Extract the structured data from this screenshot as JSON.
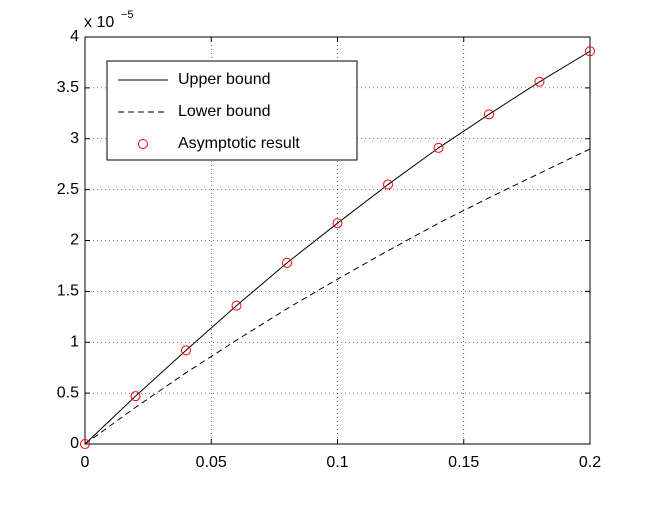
{
  "chart_data": {
    "type": "line",
    "axis_multiplier": {
      "base": "x 10",
      "exponent": "−5"
    },
    "x": [
      0,
      0.02,
      0.04,
      0.06,
      0.08,
      0.1,
      0.12,
      0.14,
      0.16,
      0.18,
      0.2
    ],
    "series": [
      {
        "name": "Upper bound",
        "color": "#000000",
        "line": "solid",
        "marker": "none",
        "values": [
          0,
          0.47,
          0.92,
          1.36,
          1.78,
          2.17,
          2.55,
          2.91,
          3.24,
          3.56,
          3.86
        ]
      },
      {
        "name": "Lower bound",
        "color": "#000000",
        "line": "dashed",
        "marker": "none",
        "values": [
          0,
          0.36,
          0.7,
          1.02,
          1.33,
          1.62,
          1.9,
          2.17,
          2.42,
          2.66,
          2.9
        ]
      },
      {
        "name": "Asymptotic result",
        "color": "#ff0000",
        "line": "none",
        "marker": "circle",
        "values": [
          0,
          0.47,
          0.92,
          1.36,
          1.78,
          2.17,
          2.55,
          2.91,
          3.24,
          3.56,
          3.86
        ]
      }
    ],
    "xlim": [
      0,
      0.2
    ],
    "xticks": [
      0,
      0.05,
      0.1,
      0.15,
      0.2
    ],
    "ylim": [
      0,
      4
    ],
    "yticks": [
      0,
      0.5,
      1,
      1.5,
      2,
      2.5,
      3,
      3.5,
      4
    ],
    "grid": true,
    "legend": "upper-left"
  }
}
